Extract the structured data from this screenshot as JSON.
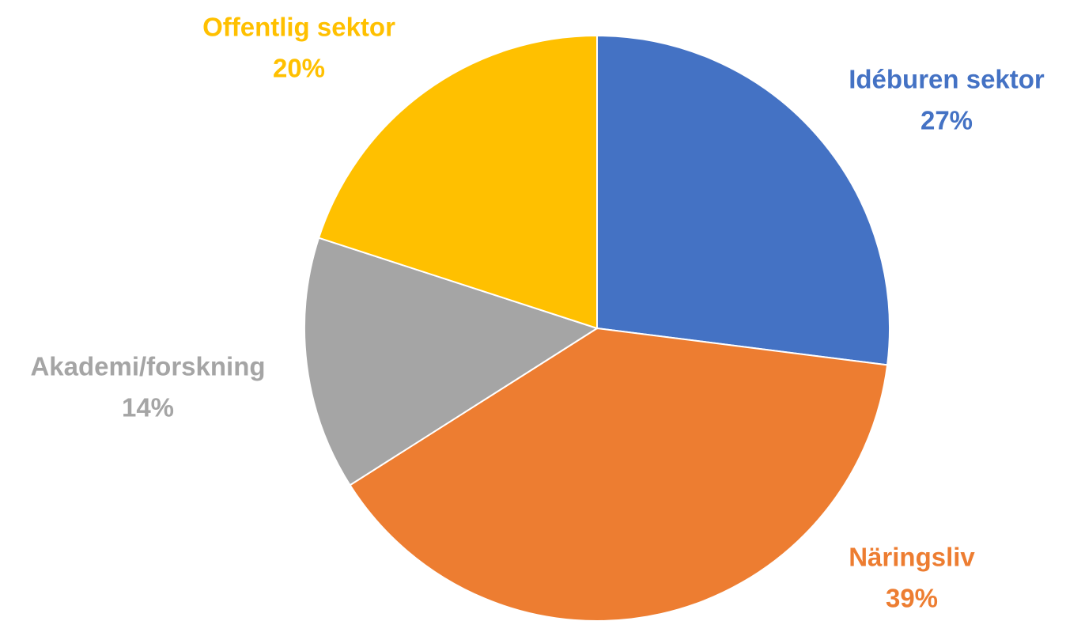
{
  "chart_data": {
    "type": "pie",
    "title": "",
    "start_angle_deg": 0,
    "direction": "clockwise",
    "legend": "none",
    "slices": [
      {
        "label": "Idéburen sektor",
        "value": 27,
        "value_label": "27%",
        "color": "#4472C4"
      },
      {
        "label": "Näringsliv",
        "value": 39,
        "value_label": "39%",
        "color": "#ED7D31"
      },
      {
        "label": "Akademi/forskning",
        "value": 14,
        "value_label": "14%",
        "color": "#A5A5A5"
      },
      {
        "label": "Offentlig sektor",
        "value": 20,
        "value_label": "20%",
        "color": "#FFC000"
      }
    ]
  }
}
